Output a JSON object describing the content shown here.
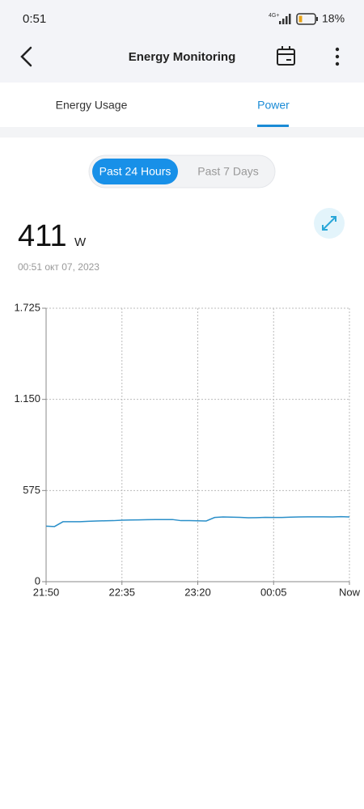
{
  "status_bar": {
    "time": "0:51",
    "network": "4G+",
    "battery": "18%"
  },
  "header": {
    "title": "Energy Monitoring"
  },
  "tabs": [
    {
      "label": "Energy Usage"
    },
    {
      "label": "Power"
    }
  ],
  "range_toggle": [
    {
      "label": "Past 24 Hours"
    },
    {
      "label": "Past 7 Days"
    }
  ],
  "reading": {
    "value": "411",
    "unit": "W",
    "timestamp": "00:51 окт 07, 2023"
  },
  "chart_data": {
    "type": "line",
    "categories": [
      "21:50",
      null,
      null,
      null,
      null,
      null,
      null,
      null,
      null,
      "22:35",
      null,
      null,
      null,
      null,
      null,
      null,
      null,
      null,
      "23:20",
      null,
      null,
      null,
      null,
      null,
      null,
      null,
      null,
      "00:05",
      null,
      null,
      null,
      null,
      null,
      null,
      null,
      null,
      "Now"
    ],
    "values": [
      350,
      348,
      378,
      378,
      378,
      381,
      383,
      384,
      385,
      388,
      389,
      390,
      391,
      392,
      392,
      392,
      385,
      385,
      384,
      383,
      405,
      408,
      407,
      406,
      403,
      404,
      406,
      405,
      405,
      407,
      408,
      409,
      409,
      409,
      408,
      410,
      408
    ],
    "color": "#2a8fc9",
    "ylim": [
      0,
      1725
    ],
    "yticks": [
      0,
      575,
      {
        "value": 1150,
        "label": "1.150"
      },
      {
        "value": 1725,
        "label": "1.725"
      }
    ],
    "grid": true
  }
}
